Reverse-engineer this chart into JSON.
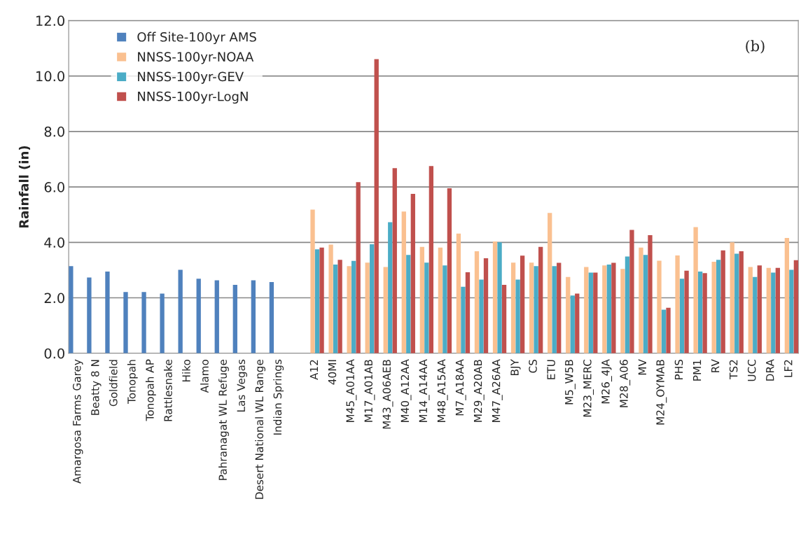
{
  "chart_data": {
    "type": "bar",
    "ylabel": "Rainfall (in)",
    "categories": [
      "Amargosa Farms Garey",
      "Beatty 8 N",
      "Goldfield",
      "Tonopah",
      "Tonopah AP",
      "Rattlesnake",
      "Hiko",
      "Alamo",
      "Pahranagat WL Refuge",
      "Las Vegas",
      "Desert National WL Range",
      "Indian Springs",
      null,
      "A12",
      "40MI",
      "M45_A01AA",
      "M17_A01AB",
      "M43_A06AEB",
      "M40_A12AA",
      "M14_A14AA",
      "M48_A15AA",
      "M7_A18AA",
      "M29_A20AB",
      "M47_A26AA",
      "BJY",
      "CS",
      "ETU",
      "M5_W5B",
      "M23_MERC",
      "M26_4JA",
      "M28_A06",
      "MV",
      "M24_OYMAB",
      "PHS",
      "PM1",
      "RV",
      "TS2",
      "UCC",
      "DRA",
      "LF2"
    ],
    "series": [
      {
        "name": "Off Site-100yr AMS",
        "color": "#4f81bd",
        "values": [
          3.14,
          2.73,
          2.95,
          2.21,
          2.21,
          2.15,
          3.01,
          2.69,
          2.63,
          2.47,
          2.63,
          2.57,
          null,
          null,
          null,
          null,
          null,
          null,
          null,
          null,
          null,
          null,
          null,
          null,
          null,
          null,
          null,
          null,
          null,
          null,
          null,
          null,
          null,
          null,
          null,
          null,
          null,
          null,
          null,
          null
        ]
      },
      {
        "name": "NNSS-100yr-NOAA",
        "color": "#fac090",
        "values": [
          null,
          null,
          null,
          null,
          null,
          null,
          null,
          null,
          null,
          null,
          null,
          null,
          null,
          5.18,
          3.92,
          3.14,
          3.27,
          3.11,
          5.11,
          3.84,
          3.81,
          4.32,
          3.68,
          4.03,
          3.27,
          3.27,
          5.06,
          2.75,
          3.11,
          3.17,
          3.04,
          3.81,
          3.34,
          3.53,
          4.55,
          3.3,
          4.0,
          3.11,
          3.08,
          4.16
        ]
      },
      {
        "name": "NNSS-100yr-GEV",
        "color": "#4bacc6",
        "values": [
          null,
          null,
          null,
          null,
          null,
          null,
          null,
          null,
          null,
          null,
          null,
          null,
          null,
          3.75,
          3.2,
          3.33,
          3.93,
          4.73,
          3.55,
          3.27,
          3.17,
          2.4,
          2.66,
          4.0,
          2.66,
          3.14,
          3.14,
          2.08,
          2.91,
          3.2,
          3.49,
          3.55,
          1.57,
          2.69,
          2.95,
          3.37,
          3.59,
          2.75,
          2.91,
          3.01
        ]
      },
      {
        "name": "NNSS-100yr-LogN",
        "color": "#c0504d",
        "values": [
          null,
          null,
          null,
          null,
          null,
          null,
          null,
          null,
          null,
          null,
          null,
          null,
          null,
          3.81,
          3.37,
          6.17,
          10.61,
          6.68,
          5.75,
          6.75,
          5.95,
          2.92,
          3.43,
          2.47,
          3.52,
          3.84,
          3.26,
          2.15,
          2.91,
          3.26,
          4.45,
          4.26,
          1.64,
          2.98,
          2.89,
          3.71,
          3.68,
          3.17,
          3.08,
          3.36
        ]
      }
    ],
    "ylim": [
      0,
      12
    ],
    "yticks": [
      {
        "value": 0,
        "label": "0.0"
      },
      {
        "value": 2,
        "label": "2.0"
      },
      {
        "value": 4,
        "label": "4.0"
      },
      {
        "value": 6,
        "label": "6.0"
      },
      {
        "value": 8,
        "label": "8.0"
      },
      {
        "value": 10,
        "label": "10.0"
      },
      {
        "value": 12,
        "label": "12.0"
      }
    ],
    "grid": "y",
    "legend": "top left",
    "annotations": [
      "(b)"
    ]
  }
}
